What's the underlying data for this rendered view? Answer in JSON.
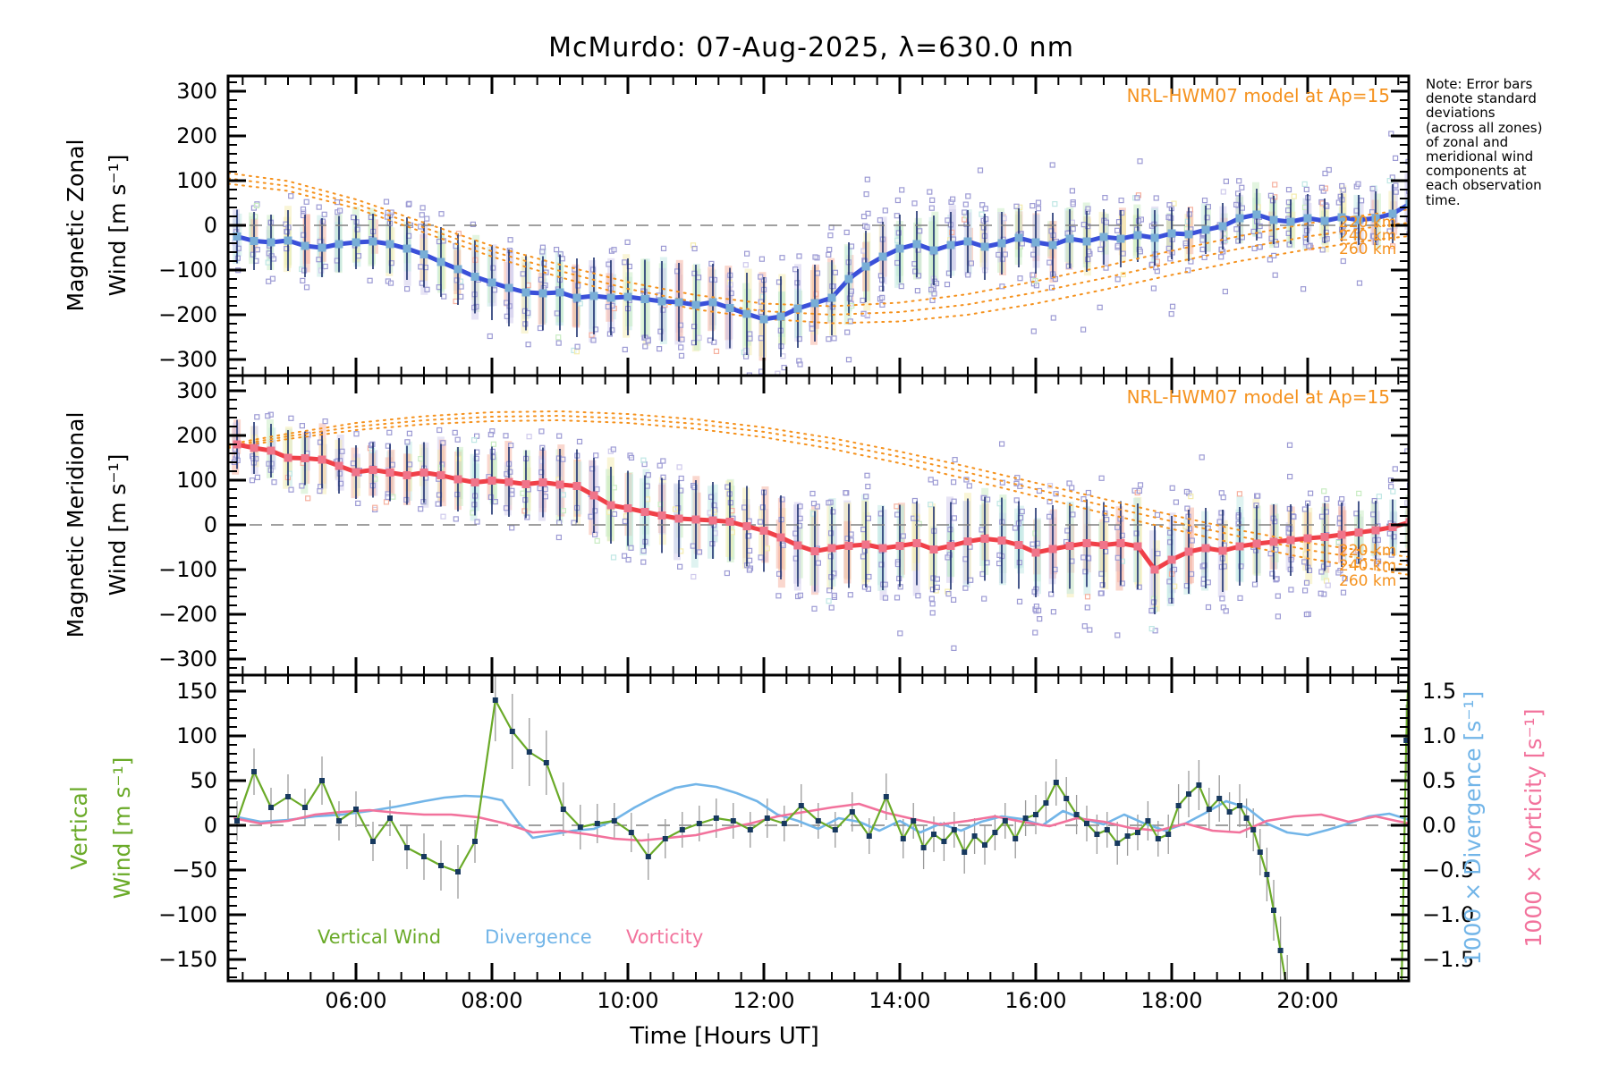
{
  "title": "McMurdo: 07-Aug-2025, λ=630.0 nm",
  "note": {
    "lines": [
      "Note: Error bars",
      "denote standard",
      "deviations",
      "(across all zones)",
      "of zonal and",
      "meridional wind",
      "components at",
      "each observation",
      "time."
    ]
  },
  "colors": {
    "zonal_line": "#3a50d9",
    "zonal_marker": "#79aed6",
    "meridional_line": "#f04048",
    "meridional_marker": "#f0758a",
    "error_bar": "#1b2f6e",
    "error_bar_gray": "#9a9a9a",
    "model_orange": "#f5921e",
    "vertical_green": "#6aaa28",
    "vertical_marker": "#17395f",
    "divergence_blue": "#72b5e8",
    "vorticity_pink": "#f2729c",
    "scatter_lavender": "#9d9bd4",
    "zero_dash": "#808080",
    "band_palette": [
      "#f6b09e",
      "#f4ecae",
      "#c8ecc2",
      "#bfe7e4",
      "#cfcaec"
    ]
  },
  "chart_data": {
    "type": "line",
    "x_axis": {
      "lim": [
        4.118,
        21.487
      ],
      "major_ticks": [
        6,
        8,
        10,
        12,
        14,
        16,
        18,
        20
      ],
      "tick_labels": [
        "06:00",
        "08:00",
        "10:00",
        "12:00",
        "14:00",
        "16:00",
        "18:00",
        "20:00"
      ],
      "minor_step_hours": 0.33333,
      "title": "Time [Hours UT]"
    },
    "panels": [
      {
        "id": "magnetic-zonal",
        "ylabel_lines": [
          "Magnetic Zonal",
          "Wind [m s⁻¹]"
        ],
        "ylabel_color": "#000000",
        "ylim": [
          -336,
          334
        ],
        "ytick_values": [
          300,
          200,
          100,
          0,
          -100,
          -200,
          -300
        ],
        "ytick_labels": [
          "300",
          "200",
          "100",
          "0",
          "−100",
          "−200",
          "−300"
        ],
        "minor_step": 20,
        "annotation": "NRL-HWM07 model at Ap=15",
        "altitude_labels": [
          "220 km",
          "240 km",
          "260 km"
        ],
        "mean": {
          "t_start": 4.25,
          "t_step": 0.25,
          "v": [
            -25,
            -35,
            -38,
            -34,
            -46,
            -50,
            -42,
            -38,
            -36,
            -42,
            -52,
            -65,
            -82,
            -98,
            -115,
            -128,
            -140,
            -150,
            -152,
            -150,
            -162,
            -158,
            -162,
            -160,
            -165,
            -170,
            -172,
            -178,
            -172,
            -185,
            -198,
            -210,
            -204,
            -186,
            -174,
            -162,
            -120,
            -92,
            -70,
            -52,
            -42,
            -56,
            -44,
            -36,
            -48,
            -40,
            -28,
            -38,
            -44,
            -30,
            -36,
            -26,
            -30,
            -22,
            -28,
            -18,
            -20,
            -10,
            -2,
            16,
            24,
            12,
            8,
            16,
            10,
            18,
            12,
            16,
            26,
            48
          ],
          "sigma": [
            60,
            65,
            62,
            68,
            70,
            66,
            63,
            60,
            62,
            66,
            70,
            74,
            78,
            80,
            82,
            84,
            86,
            85,
            83,
            85,
            88,
            86,
            84,
            86,
            88,
            90,
            88,
            90,
            86,
            90,
            92,
            94,
            90,
            88,
            86,
            84,
            82,
            80,
            78,
            76,
            74,
            78,
            74,
            70,
            74,
            70,
            66,
            70,
            72,
            66,
            68,
            62,
            64,
            60,
            62,
            58,
            60,
            54,
            52,
            56,
            58,
            54,
            50,
            54,
            50,
            54,
            56,
            60,
            66,
            72
          ]
        },
        "model": {
          "t": [
            4.12,
            5,
            6,
            7,
            8,
            9,
            10,
            11,
            12,
            13,
            14,
            15,
            16,
            17,
            18,
            19,
            20,
            21,
            21.5
          ],
          "alt220": [
            117,
            99,
            58,
            6,
            -46,
            -88,
            -127,
            -156,
            -175,
            -181,
            -173,
            -154,
            -125,
            -92,
            -57,
            -24,
            4,
            26,
            36
          ],
          "alt240": [
            105,
            88,
            48,
            -5,
            -58,
            -102,
            -142,
            -172,
            -192,
            -200,
            -194,
            -177,
            -150,
            -118,
            -84,
            -52,
            -25,
            -3,
            6
          ],
          "alt260": [
            93,
            77,
            38,
            -16,
            -70,
            -116,
            -157,
            -188,
            -209,
            -219,
            -215,
            -200,
            -175,
            -144,
            -111,
            -80,
            -54,
            -32,
            -24
          ]
        }
      },
      {
        "id": "magnetic-meridional",
        "ylabel_lines": [
          "Magnetic Meridional",
          "Wind [m s⁻¹]"
        ],
        "ylabel_color": "#000000",
        "ylim": [
          -336,
          334
        ],
        "ytick_values": [
          300,
          200,
          100,
          0,
          -100,
          -200,
          -300
        ],
        "ytick_labels": [
          "300",
          "200",
          "100",
          "0",
          "−100",
          "−200",
          "−300"
        ],
        "minor_step": 20,
        "annotation": "NRL-HWM07 model at Ap=15",
        "altitude_labels": [
          "220 km",
          "240 km",
          "260 km"
        ],
        "mean": {
          "t_start": 4.25,
          "t_step": 0.25,
          "v": [
            180,
            172,
            166,
            150,
            149,
            146,
            132,
            118,
            123,
            117,
            111,
            117,
            111,
            102,
            95,
            99,
            96,
            91,
            95,
            90,
            87,
            66,
            44,
            37,
            29,
            21,
            14,
            12,
            10,
            7,
            -3,
            -13,
            -28,
            -46,
            -59,
            -52,
            -47,
            -44,
            -52,
            -47,
            -41,
            -55,
            -47,
            -37,
            -31,
            -35,
            -45,
            -62,
            -54,
            -47,
            -41,
            -45,
            -41,
            -48,
            -100,
            -78,
            -60,
            -52,
            -58,
            -48,
            -42,
            -38,
            -34,
            -30,
            -27,
            -22,
            -17,
            -12,
            -5,
            6
          ],
          "sigma": [
            55,
            58,
            60,
            62,
            60,
            64,
            62,
            60,
            62,
            64,
            66,
            68,
            70,
            72,
            74,
            76,
            78,
            76,
            78,
            80,
            82,
            84,
            86,
            84,
            82,
            84,
            86,
            88,
            86,
            88,
            90,
            92,
            94,
            92,
            90,
            92,
            94,
            96,
            94,
            92,
            94,
            96,
            98,
            96,
            94,
            96,
            98,
            100,
            98,
            96,
            98,
            96,
            94,
            96,
            100,
            98,
            94,
            90,
            92,
            88,
            86,
            84,
            80,
            78,
            76,
            72,
            70,
            66,
            62,
            58
          ]
        },
        "model": {
          "t": [
            4.12,
            5,
            6,
            7,
            8,
            9,
            10,
            11,
            12,
            13,
            14,
            15,
            16,
            17,
            18,
            19,
            20,
            21,
            21.5
          ],
          "alt220": [
            180,
            204,
            228,
            243,
            252,
            254,
            248,
            236,
            218,
            194,
            164,
            130,
            94,
            58,
            22,
            -12,
            -40,
            -62,
            -72
          ],
          "alt240": [
            176,
            198,
            220,
            234,
            242,
            244,
            238,
            226,
            208,
            183,
            152,
            117,
            80,
            43,
            8,
            -26,
            -56,
            -80,
            -91
          ],
          "alt260": [
            172,
            192,
            212,
            225,
            232,
            234,
            228,
            215,
            196,
            170,
            138,
            102,
            64,
            26,
            -9,
            -44,
            -75,
            -100,
            -112
          ]
        }
      },
      {
        "id": "vertical-divergence-vorticity",
        "ylabel_lines": [
          "Vertical",
          "Wind [m s⁻¹]"
        ],
        "ylabel_color": "#6aaa28",
        "ylim": [
          -174,
          168
        ],
        "ytick_values": [
          150,
          100,
          50,
          0,
          -50,
          -100,
          -150
        ],
        "ytick_labels": [
          "150",
          "100",
          "50",
          "0",
          "−50",
          "−100",
          "−150"
        ],
        "minor_step": 10,
        "right_axis": {
          "ytick_values": [
            1.5,
            1.0,
            0.5,
            0.0,
            -0.5,
            -1.0,
            -1.5
          ],
          "ytick_labels": [
            "1.5",
            "1.0",
            "0.5",
            "0.0",
            "−0.5",
            "−1.0",
            "−1.5"
          ],
          "label_divergence": "1000 × Divergence [s⁻¹]",
          "label_vorticity": "1000 × Vorticity [s⁻¹]"
        },
        "legend": [
          "Vertical Wind",
          "Divergence",
          "Vorticity"
        ],
        "vertical_wind": {
          "t": [
            4.25,
            4.5,
            4.75,
            5.0,
            5.25,
            5.5,
            5.75,
            6.0,
            6.25,
            6.5,
            6.75,
            7.0,
            7.25,
            7.5,
            7.75,
            8.05,
            8.3,
            8.55,
            8.8,
            9.05,
            9.3,
            9.55,
            9.8,
            10.05,
            10.3,
            10.55,
            10.8,
            11.05,
            11.3,
            11.55,
            11.8,
            12.05,
            12.3,
            12.55,
            12.8,
            13.05,
            13.3,
            13.55,
            13.8,
            14.05,
            14.2,
            14.35,
            14.5,
            14.65,
            14.8,
            14.95,
            15.1,
            15.25,
            15.4,
            15.55,
            15.7,
            15.85,
            16.0,
            16.15,
            16.3,
            16.45,
            16.6,
            16.75,
            16.9,
            17.05,
            17.2,
            17.35,
            17.5,
            17.65,
            17.8,
            17.95,
            18.1,
            18.25,
            18.4,
            18.55,
            18.7,
            18.85,
            19.0,
            19.1,
            19.2,
            19.3,
            19.4,
            19.5,
            19.6,
            19.7,
            21.38,
            21.45,
            21.5
          ],
          "v": [
            5,
            60,
            20,
            32,
            20,
            50,
            5,
            18,
            -18,
            8,
            -25,
            -35,
            -45,
            -52,
            -18,
            140,
            105,
            82,
            70,
            18,
            -2,
            2,
            5,
            -8,
            -35,
            -15,
            -5,
            2,
            8,
            5,
            -5,
            8,
            2,
            22,
            5,
            -5,
            15,
            -12,
            32,
            -15,
            5,
            -25,
            -10,
            -18,
            -5,
            -30,
            -12,
            -22,
            -8,
            5,
            -15,
            8,
            12,
            25,
            48,
            30,
            12,
            2,
            -10,
            -5,
            -20,
            -12,
            -8,
            5,
            -15,
            -10,
            22,
            35,
            45,
            18,
            30,
            15,
            22,
            8,
            -5,
            -30,
            -55,
            -95,
            -140,
            -185,
            -185,
            95,
            215
          ],
          "sigma": [
            22,
            26,
            22,
            25,
            21,
            27,
            22,
            20,
            22,
            20,
            24,
            26,
            28,
            30,
            24,
            46,
            42,
            38,
            36,
            30,
            25,
            22,
            20,
            22,
            26,
            22,
            20,
            20,
            22,
            20,
            20,
            22,
            20,
            24,
            20,
            20,
            22,
            20,
            26,
            22,
            20,
            24,
            20,
            22,
            20,
            24,
            20,
            22,
            20,
            20,
            22,
            20,
            22,
            24,
            26,
            24,
            22,
            20,
            22,
            20,
            24,
            22,
            20,
            22,
            20,
            22,
            24,
            26,
            28,
            24,
            26,
            22,
            24,
            22,
            24,
            26,
            30,
            34,
            38,
            40,
            0,
            40,
            0
          ]
        },
        "divergence": {
          "t": [
            4.2,
            4.6,
            5.0,
            5.4,
            5.8,
            6.2,
            6.6,
            7.0,
            7.3,
            7.6,
            7.9,
            8.15,
            8.4,
            8.6,
            8.9,
            9.2,
            9.5,
            9.8,
            10.1,
            10.4,
            10.7,
            11.0,
            11.3,
            11.6,
            11.9,
            12.2,
            12.5,
            12.8,
            13.1,
            13.4,
            13.7,
            14.0,
            14.3,
            14.6,
            14.9,
            15.2,
            15.5,
            15.8,
            16.1,
            16.4,
            16.7,
            17.0,
            17.3,
            17.6,
            17.9,
            18.2,
            18.5,
            18.8,
            19.1,
            19.4,
            19.7,
            20.0,
            20.3,
            20.6,
            20.9,
            21.2,
            21.5
          ],
          "v": [
            0.1,
            0.04,
            0.06,
            0.1,
            0.12,
            0.16,
            0.21,
            0.27,
            0.31,
            0.33,
            0.32,
            0.28,
            0.02,
            -0.14,
            -0.1,
            -0.06,
            -0.04,
            0.06,
            0.2,
            0.32,
            0.42,
            0.46,
            0.43,
            0.36,
            0.27,
            0.12,
            0.05,
            -0.04,
            0.08,
            0.04,
            -0.06,
            0.05,
            -0.08,
            0.02,
            -0.06,
            0.04,
            0.1,
            0.07,
            0.0,
            0.16,
            0.07,
            0.01,
            0.12,
            0.02,
            -0.06,
            0.02,
            0.14,
            0.27,
            0.2,
            0.02,
            -0.08,
            -0.11,
            -0.05,
            0.02,
            0.1,
            0.13,
            0.06
          ]
        },
        "vorticity": {
          "t": [
            4.2,
            4.6,
            5.0,
            5.4,
            5.8,
            6.2,
            6.6,
            7.0,
            7.4,
            7.8,
            8.2,
            8.6,
            9.0,
            9.4,
            9.8,
            10.2,
            10.6,
            11.0,
            11.4,
            11.8,
            12.2,
            12.6,
            13.0,
            13.4,
            13.8,
            14.2,
            14.6,
            15.0,
            15.4,
            15.8,
            16.2,
            16.6,
            17.0,
            17.4,
            17.8,
            18.2,
            18.6,
            19.0,
            19.4,
            19.8,
            20.2,
            20.6,
            21.0,
            21.3,
            21.5
          ],
          "v": [
            0.08,
            0.02,
            0.05,
            0.12,
            0.15,
            0.17,
            0.14,
            0.12,
            0.12,
            0.09,
            0.02,
            -0.08,
            -0.06,
            -0.1,
            -0.15,
            -0.17,
            -0.14,
            -0.11,
            -0.04,
            0.02,
            0.1,
            0.15,
            0.2,
            0.24,
            0.14,
            0.07,
            0.01,
            0.05,
            0.1,
            0.04,
            -0.01,
            0.08,
            0.04,
            -0.03,
            -0.06,
            0.02,
            -0.06,
            -0.08,
            0.05,
            0.1,
            0.12,
            0.04,
            0.1,
            0.05,
            0.02
          ]
        }
      }
    ]
  }
}
